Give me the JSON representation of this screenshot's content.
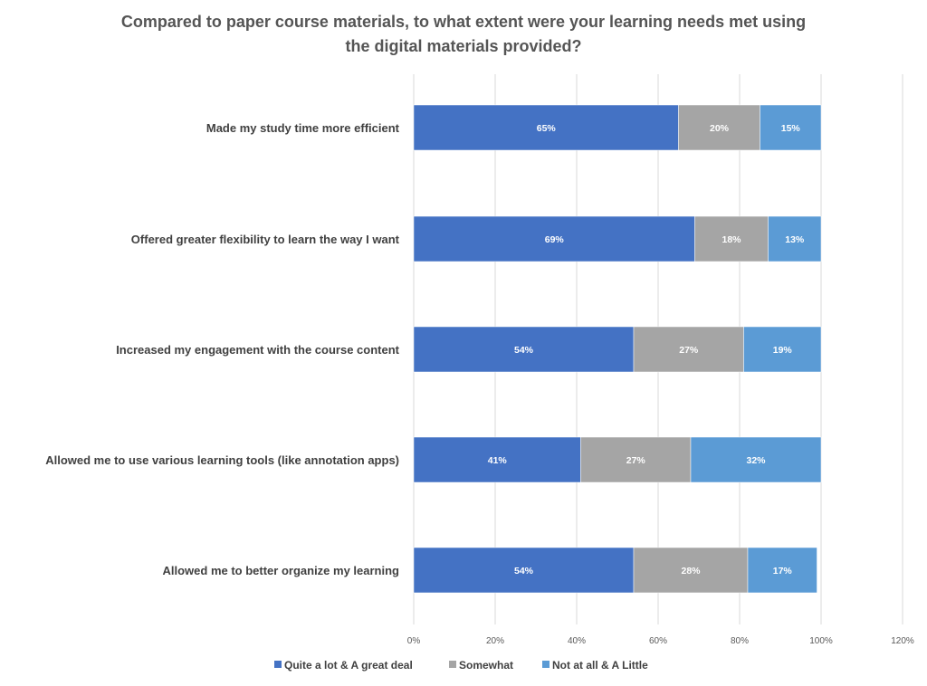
{
  "chart_data": {
    "type": "bar",
    "orientation": "horizontal",
    "stacked": true,
    "title": "Compared to paper course materials, to what extent were your learning needs met using the digital materials provided?",
    "title_lines": [
      "Compared to paper course materials, to what extent were your learning needs met using",
      "the digital materials provided?"
    ],
    "categories": [
      "Made my study time more efficient",
      "Offered greater flexibility to learn the way I want",
      "Increased my engagement with the course content",
      "Allowed me to use various learning tools (like annotation apps)",
      "Allowed me to better organize my learning"
    ],
    "series": [
      {
        "name": "Quite a lot & A great deal",
        "color": "#4472C4",
        "values": [
          65,
          69,
          54,
          41,
          54
        ]
      },
      {
        "name": "Somewhat",
        "color": "#A5A5A5",
        "values": [
          20,
          18,
          27,
          27,
          28
        ]
      },
      {
        "name": "Not at all & A Little",
        "color": "#5B9BD5",
        "values": [
          15,
          13,
          19,
          32,
          17
        ]
      }
    ],
    "value_suffix": "%",
    "xlim": [
      0,
      120
    ],
    "xticks": [
      0,
      20,
      40,
      60,
      80,
      100,
      120
    ],
    "xtick_labels": [
      "0%",
      "20%",
      "40%",
      "60%",
      "80%",
      "100%",
      "120%"
    ],
    "grid": true,
    "legend_position": "bottom"
  }
}
